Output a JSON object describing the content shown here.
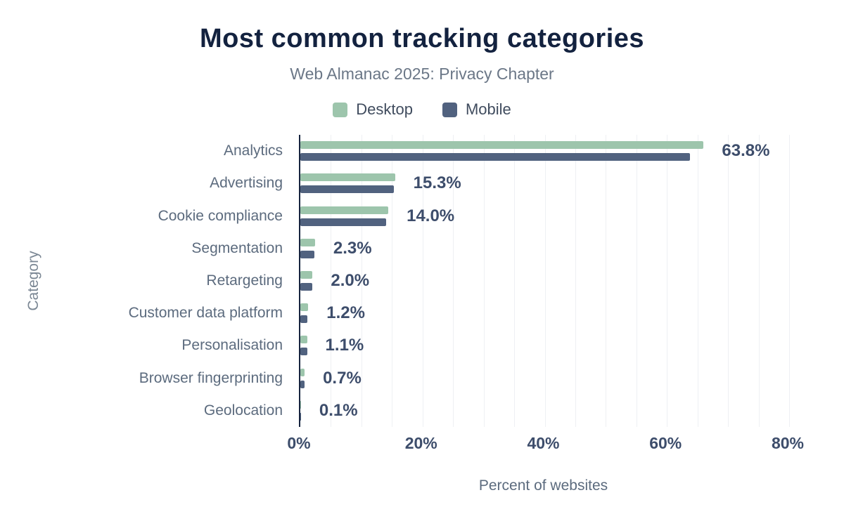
{
  "title": "Most common tracking categories",
  "subtitle": "Web Almanac 2025: Privacy Chapter",
  "legend": [
    {
      "label": "Desktop",
      "color": "#9dc5ac"
    },
    {
      "label": "Mobile",
      "color": "#51627f"
    }
  ],
  "colors": {
    "title": "#13223f",
    "axis_line": "#16233e",
    "data_label": "#3d4d6b",
    "category_label": "#5c6b7e",
    "gridline": "#eef0f3"
  },
  "chart_data": {
    "type": "bar",
    "orientation": "horizontal",
    "title": "Most common tracking categories",
    "subtitle": "Web Almanac 2025: Privacy Chapter",
    "xlabel": "Percent of websites",
    "ylabel": "Category",
    "xlim": [
      0,
      80
    ],
    "x_ticks": [
      "0%",
      "20%",
      "40%",
      "60%",
      "80%"
    ],
    "x_tick_values": [
      0,
      20,
      40,
      60,
      80
    ],
    "grid": "vertical-minor-every-5",
    "legend_position": "top-center",
    "categories": [
      "Analytics",
      "Advertising",
      "Cookie compliance",
      "Segmentation",
      "Retargeting",
      "Customer data platform",
      "Personalisation",
      "Browser fingerprinting",
      "Geolocation"
    ],
    "series": [
      {
        "name": "Desktop",
        "values": [
          66.0,
          15.5,
          14.4,
          2.4,
          2.0,
          1.3,
          1.1,
          0.7,
          0.1
        ]
      },
      {
        "name": "Mobile",
        "values": [
          63.8,
          15.3,
          14.0,
          2.3,
          2.0,
          1.2,
          1.1,
          0.7,
          0.1
        ]
      }
    ],
    "data_labels": [
      "63.8%",
      "15.3%",
      "14.0%",
      "2.3%",
      "2.0%",
      "1.2%",
      "1.1%",
      "0.7%",
      "0.1%"
    ]
  }
}
